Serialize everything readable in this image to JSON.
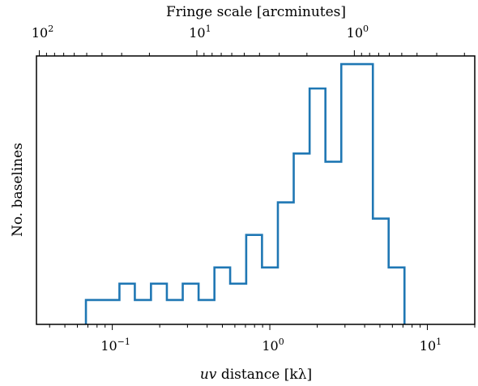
{
  "chart_data": {
    "type": "histogram",
    "bottom_axis": {
      "label_italic": "uv",
      "label_rest": " distance [kλ]",
      "scale": "log",
      "range": [
        0.033,
        20
      ],
      "major_ticks": [
        {
          "value": 0.1,
          "base": "10",
          "exp": "−1"
        },
        {
          "value": 1,
          "base": "10",
          "exp": "0"
        },
        {
          "value": 10,
          "base": "10",
          "exp": "1"
        }
      ]
    },
    "top_axis": {
      "label": "Fringe scale [arcminutes]",
      "scale": "log",
      "reversed": true,
      "major_ticks": [
        {
          "value": 100,
          "base": "10",
          "exp": "2"
        },
        {
          "value": 10,
          "base": "10",
          "exp": "1"
        },
        {
          "value": 1,
          "base": "10",
          "exp": "0"
        }
      ]
    },
    "ylabel": "No. baselines",
    "ylim": [
      0,
      16.5
    ],
    "bin_edges": [
      0.068,
      0.088,
      0.111,
      0.139,
      0.176,
      0.222,
      0.28,
      0.353,
      0.445,
      0.56,
      0.708,
      0.892,
      1.125,
      1.418,
      1.789,
      2.254,
      2.842,
      3.58,
      4.51,
      5.68,
      7.16
    ],
    "counts": [
      1.5,
      1.5,
      2.5,
      1.5,
      2.5,
      1.5,
      2.5,
      1.5,
      3.5,
      2.5,
      5.5,
      3.5,
      7.5,
      10.5,
      14.5,
      10.0,
      16.0,
      16.0,
      6.5,
      3.5
    ],
    "line_color": "#1f77b4",
    "grid": false,
    "legend": false
  }
}
